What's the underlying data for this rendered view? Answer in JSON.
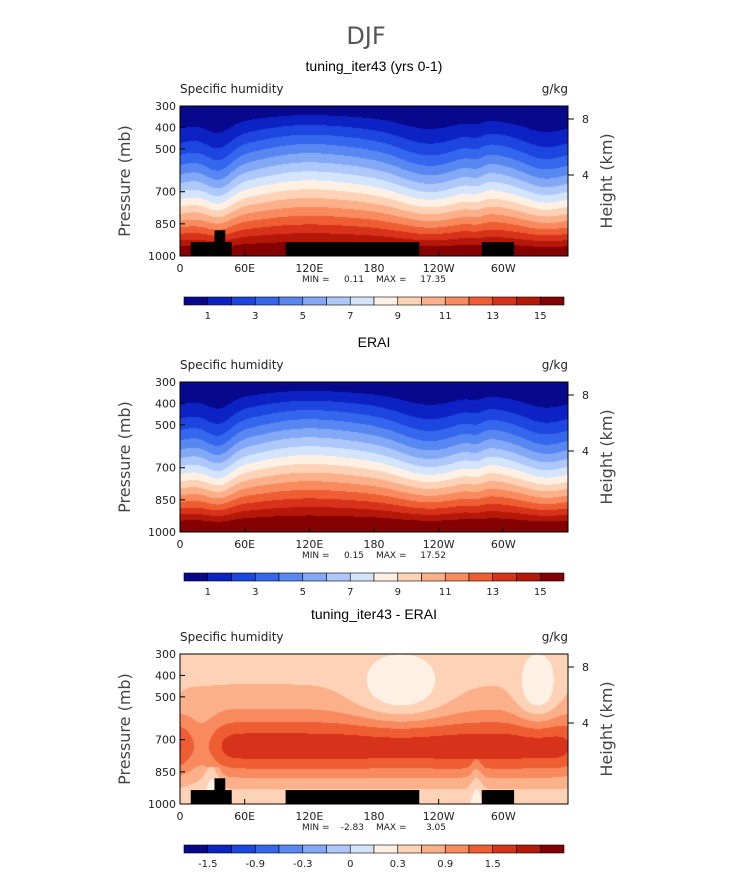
{
  "figure": {
    "title": "DJF"
  },
  "palettes": {
    "sequential": [
      "#08088c",
      "#0d22c4",
      "#1d45e0",
      "#3566ee",
      "#5887f2",
      "#83a9f6",
      "#aec8fa",
      "#d5e4fd",
      "#fff0e4",
      "#fdd2b6",
      "#fbb089",
      "#f88a5e",
      "#ef5d33",
      "#d9321a",
      "#b51808",
      "#850000"
    ],
    "diverging": [
      "#08088c",
      "#0d22c4",
      "#1d45e0",
      "#3566ee",
      "#5887f2",
      "#83a9f6",
      "#aec8fa",
      "#d5e4fd",
      "#fff0e4",
      "#fdd2b6",
      "#fbb089",
      "#f88a5e",
      "#ef5d33",
      "#d9321a",
      "#b51808",
      "#850000"
    ]
  },
  "chart_data": [
    {
      "type": "heatmap",
      "title": "tuning_iter43 (yrs 0-1)",
      "variable": "Specific humidity",
      "units": "g/kg",
      "xlabel": "",
      "ylabel": "Pressure (mb)",
      "ylabel_right": "Height (km)",
      "x_ticks": [
        "0",
        "60E",
        "120E",
        "180",
        "120W",
        "60W"
      ],
      "x_tick_values": [
        0,
        60,
        120,
        180,
        240,
        300
      ],
      "xlim": [
        0,
        360
      ],
      "y_ticks": [
        "300",
        "400",
        "500",
        "700",
        "850",
        "1000"
      ],
      "y_tick_values": [
        300,
        400,
        500,
        700,
        850,
        1000
      ],
      "ylim": [
        300,
        1000
      ],
      "right_ticks": [
        "8",
        "4"
      ],
      "right_tick_values": [
        8,
        4
      ],
      "stats": {
        "min_label": "MIN =",
        "min": "0.11",
        "max_label": "MAX =",
        "max": "17.35"
      },
      "colorbar": {
        "levels": [
          "1",
          "3",
          "5",
          "7",
          "9",
          "11",
          "13",
          "15"
        ],
        "palette": "sequential"
      },
      "field": {
        "kind": "humidity",
        "surface_max": 16.5
      },
      "topography": [
        {
          "lon0": 10,
          "lon1": 48,
          "p_top": 935
        },
        {
          "lon0": 32,
          "lon1": 42,
          "p_top": 880
        },
        {
          "lon0": 98,
          "lon1": 222,
          "p_top": 935
        },
        {
          "lon0": 280,
          "lon1": 310,
          "p_top": 935
        }
      ]
    },
    {
      "type": "heatmap",
      "title": "ERAI",
      "variable": "Specific humidity",
      "units": "g/kg",
      "xlabel": "",
      "ylabel": "Pressure (mb)",
      "ylabel_right": "Height (km)",
      "x_ticks": [
        "0",
        "60E",
        "120E",
        "180",
        "120W",
        "60W"
      ],
      "x_tick_values": [
        0,
        60,
        120,
        180,
        240,
        300
      ],
      "xlim": [
        0,
        360
      ],
      "y_ticks": [
        "300",
        "400",
        "500",
        "700",
        "850",
        "1000"
      ],
      "y_tick_values": [
        300,
        400,
        500,
        700,
        850,
        1000
      ],
      "ylim": [
        300,
        1000
      ],
      "right_ticks": [
        "8",
        "4"
      ],
      "right_tick_values": [
        8,
        4
      ],
      "stats": {
        "min_label": "MIN =",
        "min": "0.15",
        "max_label": "MAX =",
        "max": "17.52"
      },
      "colorbar": {
        "levels": [
          "1",
          "3",
          "5",
          "7",
          "9",
          "11",
          "13",
          "15"
        ],
        "palette": "sequential"
      },
      "field": {
        "kind": "humidity",
        "surface_max": 16.8
      },
      "topography": []
    },
    {
      "type": "heatmap",
      "title": "tuning_iter43 - ERAI",
      "variable": "Specific humidity",
      "units": "g/kg",
      "xlabel": "",
      "ylabel": "Pressure (mb)",
      "ylabel_right": "Height (km)",
      "x_ticks": [
        "0",
        "60E",
        "120E",
        "180",
        "120W",
        "60W"
      ],
      "x_tick_values": [
        0,
        60,
        120,
        180,
        240,
        300
      ],
      "xlim": [
        0,
        360
      ],
      "y_ticks": [
        "300",
        "400",
        "500",
        "700",
        "850",
        "1000"
      ],
      "y_tick_values": [
        300,
        400,
        500,
        700,
        850,
        1000
      ],
      "ylim": [
        300,
        1000
      ],
      "right_ticks": [
        "8",
        "4"
      ],
      "right_tick_values": [
        8,
        4
      ],
      "stats": {
        "min_label": "MIN =",
        "min": "-2.83",
        "max_label": "MAX =",
        "max": "3.05"
      },
      "colorbar": {
        "levels": [
          "-1.5",
          "-0.9",
          "-0.3",
          "0",
          "0.3",
          "0.9",
          "1.5"
        ],
        "palette": "diverging"
      },
      "field": {
        "kind": "difference"
      },
      "topography": [
        {
          "lon0": 10,
          "lon1": 48,
          "p_top": 935
        },
        {
          "lon0": 32,
          "lon1": 42,
          "p_top": 880
        },
        {
          "lon0": 98,
          "lon1": 222,
          "p_top": 935
        },
        {
          "lon0": 280,
          "lon1": 310,
          "p_top": 935
        }
      ]
    }
  ]
}
